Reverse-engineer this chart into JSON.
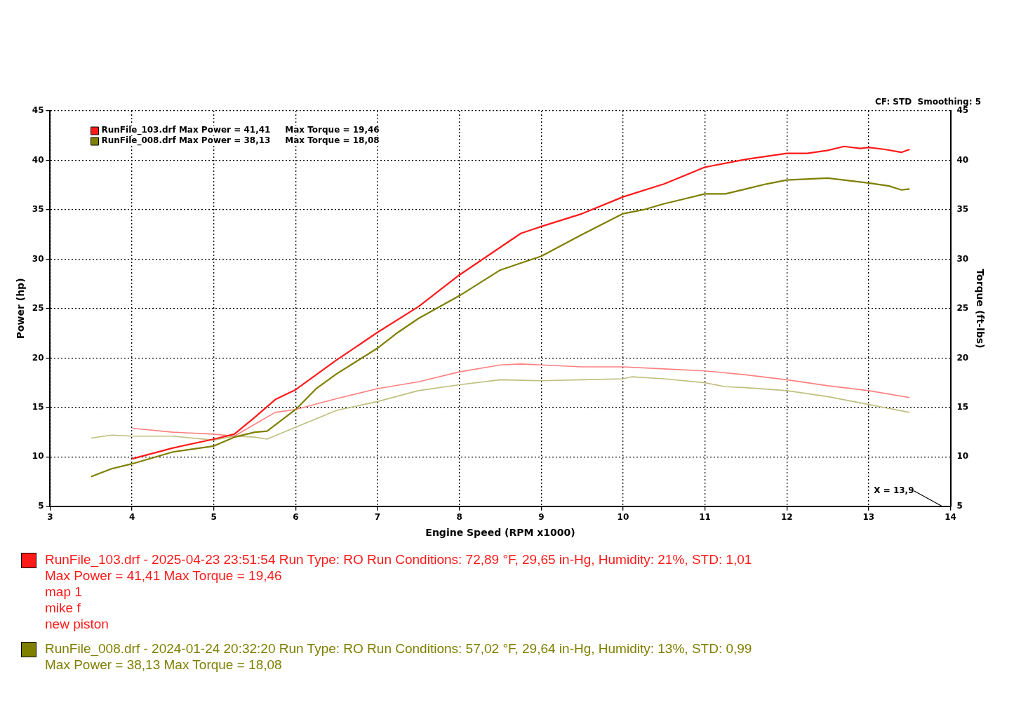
{
  "chart_data": {
    "type": "line",
    "xlabel": "Engine Speed (RPM x1000)",
    "ylabel": "Power (hp)",
    "y2label": "Torque (ft-lbs)",
    "xlim": [
      3,
      14
    ],
    "xticks": [
      3,
      4,
      5,
      6,
      7,
      8,
      9,
      10,
      11,
      12,
      13,
      14
    ],
    "ylim": [
      5,
      45
    ],
    "yticks": [
      5,
      10,
      15,
      20,
      25,
      30,
      35,
      40,
      45
    ],
    "y2lim": [
      5,
      45
    ],
    "y2ticks": [
      5,
      10,
      15,
      20,
      25,
      30,
      35,
      40,
      45
    ],
    "grid": true,
    "legend": "top left",
    "marker": "none",
    "line_style": "solid",
    "series": [
      {
        "name": "RunFile_103.drf Max Power = 41,41     Max Torque = 19,46",
        "color": "#ff1a1a",
        "x": [
          4,
          4.5,
          5,
          5.25,
          5.5,
          5.75,
          6,
          6.5,
          7,
          7.5,
          8,
          8.5,
          8.75,
          9,
          9.5,
          10,
          10.5,
          11,
          11.5,
          12,
          12.25,
          12.5,
          12.7,
          12.9,
          13,
          13.2,
          13.4,
          13.5
        ],
        "values": [
          9.8,
          10.9,
          11.8,
          12.3,
          14,
          15.8,
          16.8,
          19.8,
          22.6,
          25.2,
          28.4,
          31.2,
          32.6,
          33.3,
          34.6,
          36.3,
          37.6,
          39.3,
          40.1,
          40.7,
          40.7,
          41,
          41.4,
          41.2,
          41.3,
          41.1,
          40.8,
          41.1
        ]
      },
      {
        "name": "RunFile_008.drf Max Power = 38,13     Max Torque = 18,08",
        "color": "#7f7f00",
        "x": [
          3.5,
          3.75,
          4,
          4.5,
          5,
          5.25,
          5.5,
          5.65,
          6,
          6.25,
          6.5,
          7,
          7.25,
          7.5,
          8,
          8.5,
          9,
          9.5,
          10,
          10.25,
          10.5,
          10.75,
          11,
          11.25,
          11.5,
          11.75,
          12,
          12.5,
          13,
          13.25,
          13.4,
          13.5
        ],
        "values": [
          8,
          8.8,
          9.3,
          10.5,
          11.1,
          12,
          12.5,
          12.6,
          14.8,
          16.9,
          18.4,
          21,
          22.6,
          24,
          26.3,
          28.9,
          30.3,
          32.5,
          34.6,
          35,
          35.6,
          36.1,
          36.6,
          36.6,
          37.1,
          37.6,
          38,
          38.2,
          37.7,
          37.4,
          37,
          37.1
        ]
      },
      {
        "color": "#ff8080",
        "axis": "y2",
        "x": [
          4,
          4.5,
          5,
          5.25,
          5.5,
          5.75,
          6,
          6.5,
          7,
          7.5,
          8,
          8.5,
          8.75,
          9,
          9.5,
          10,
          10.5,
          11,
          11.5,
          12,
          12.5,
          13,
          13.5
        ],
        "values": [
          12.9,
          12.5,
          12.3,
          12.1,
          13.3,
          14.5,
          14.8,
          15.9,
          16.9,
          17.6,
          18.6,
          19.3,
          19.4,
          19.3,
          19.1,
          19.1,
          18.9,
          18.7,
          18.3,
          17.8,
          17.2,
          16.7,
          16
        ]
      },
      {
        "color": "#bfbf7f",
        "axis": "y2",
        "x": [
          3.5,
          3.75,
          4,
          4.5,
          5,
          5.25,
          5.5,
          5.65,
          6,
          6.5,
          7,
          7.5,
          8,
          8.5,
          9,
          9.5,
          10,
          10.1,
          10.5,
          11,
          11.25,
          11.5,
          12,
          12.5,
          13,
          13.5
        ],
        "values": [
          11.9,
          12.2,
          12.1,
          12.1,
          11.7,
          12.1,
          12,
          11.8,
          13,
          14.7,
          15.6,
          16.7,
          17.3,
          17.8,
          17.7,
          17.8,
          17.9,
          18.1,
          17.9,
          17.5,
          17.1,
          17,
          16.7,
          16.1,
          15.3,
          14.5
        ]
      }
    ],
    "annotations": [
      "CF: STD  Smoothing: 5",
      "X = 13,9",
      "RunFile_103.drf - 2025-04-23 23:51:54  Run Type: RO  Run Conditions: 72,89 °F, 29,65 in-Hg,  Humidity:  21%, STD: 1,01",
      "Max Power = 41,41  Max Torque = 19,46",
      "map 1",
      "mike f",
      "new piston",
      "RunFile_008.drf - 2024-01-24 20:32:20  Run Type: RO  Run Conditions: 57,02 °F, 29,64 in-Hg,  Humidity:  13%, STD: 0,99",
      "Max Power = 38,13  Max Torque = 18,08"
    ]
  }
}
